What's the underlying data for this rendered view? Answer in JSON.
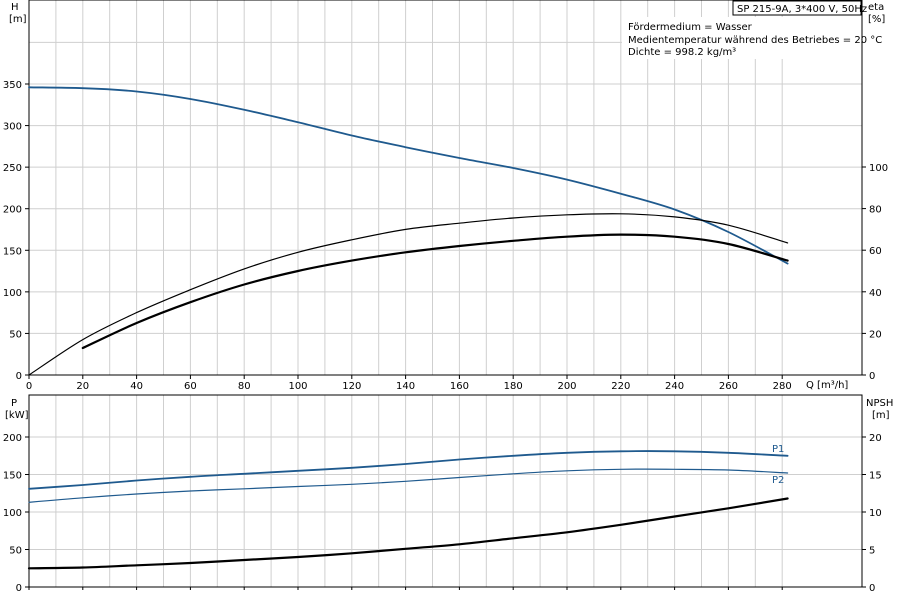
{
  "title": "SP 215-9A, 3*400 V, 50Hz",
  "info_lines": [
    "Fördermedium = Wasser",
    "Medientemperatur während des Betriebes = 20 °C",
    "Dichte = 998.2 kg/m³"
  ],
  "chart_data": [
    {
      "type": "line",
      "name": "pump-performance",
      "x_axis": {
        "label": "Q [m³/h]",
        "range": [
          0,
          290
        ],
        "ticks": [
          0,
          20,
          40,
          60,
          80,
          100,
          120,
          140,
          160,
          180,
          200,
          220,
          240,
          260,
          280
        ]
      },
      "y_axis_left": {
        "label_top": "H",
        "label_unit": "[m]",
        "range": [
          0,
          350
        ],
        "ticks": [
          0,
          50,
          100,
          150,
          200,
          250,
          300,
          350
        ]
      },
      "y_axis_right": {
        "label_top": "eta",
        "label_unit": "[%]",
        "range": [
          0,
          100
        ],
        "ticks": [
          0,
          20,
          40,
          60,
          80,
          100
        ]
      },
      "grid": true,
      "series": [
        {
          "name": "H",
          "axis": "left",
          "color": "#1f5a8e",
          "width": 1.8,
          "x": [
            0,
            20,
            40,
            60,
            80,
            100,
            120,
            140,
            160,
            180,
            200,
            220,
            240,
            260,
            282
          ],
          "y": [
            346,
            345,
            341,
            332,
            319,
            304,
            288,
            274,
            261,
            249,
            235,
            218,
            199,
            172,
            134
          ]
        },
        {
          "axis": "right",
          "color": "#000000",
          "width": 1.2,
          "x": [
            0,
            20,
            40,
            60,
            80,
            100,
            120,
            140,
            160,
            180,
            200,
            220,
            240,
            260,
            282
          ],
          "y": [
            0,
            17,
            30,
            41,
            51,
            59,
            65,
            70,
            73,
            75.5,
            77,
            77.5,
            76,
            72,
            63.5
          ]
        },
        {
          "axis": "right",
          "color": "#000000",
          "width": 2.2,
          "x": [
            20,
            40,
            60,
            80,
            100,
            120,
            140,
            160,
            180,
            200,
            220,
            240,
            260,
            282
          ],
          "y": [
            13,
            25,
            35,
            43.5,
            50,
            55,
            59,
            62,
            64.5,
            66.5,
            67.5,
            66.5,
            63,
            55
          ]
        }
      ]
    },
    {
      "type": "line",
      "name": "power-npsh",
      "x_axis": {
        "range": [
          0,
          290
        ],
        "ticks": [
          0,
          20,
          40,
          60,
          80,
          100,
          120,
          140,
          160,
          180,
          200,
          220,
          240,
          260,
          280
        ]
      },
      "y_axis_left": {
        "label_top": "P",
        "label_unit": "[kW]",
        "range": [
          0,
          200
        ],
        "ticks": [
          0,
          50,
          100,
          150,
          200
        ]
      },
      "y_axis_right": {
        "label_top": "NPSH",
        "label_unit": "[m]",
        "range": [
          0,
          20
        ],
        "ticks": [
          0,
          5,
          10,
          15,
          20
        ]
      },
      "grid": true,
      "series": [
        {
          "name": "P1",
          "axis": "left",
          "color": "#1f5a8e",
          "width": 1.8,
          "x": [
            0,
            20,
            40,
            60,
            80,
            100,
            120,
            140,
            160,
            180,
            200,
            220,
            240,
            260,
            282
          ],
          "y": [
            131,
            136,
            142,
            147,
            151,
            155,
            159,
            164,
            170,
            175,
            179,
            181,
            181,
            179,
            175
          ]
        },
        {
          "name": "P2",
          "axis": "left",
          "color": "#1f5a8e",
          "width": 1.2,
          "x": [
            0,
            20,
            40,
            60,
            80,
            100,
            120,
            140,
            160,
            180,
            200,
            220,
            240,
            260,
            282
          ],
          "y": [
            113,
            119,
            124,
            128,
            131,
            134,
            137,
            141,
            146,
            151,
            155,
            157,
            157,
            156,
            152
          ]
        },
        {
          "axis": "right",
          "color": "#000000",
          "width": 2.2,
          "x": [
            0,
            20,
            40,
            60,
            80,
            100,
            120,
            140,
            160,
            180,
            200,
            220,
            240,
            260,
            282
          ],
          "y": [
            2.5,
            2.6,
            2.9,
            3.2,
            3.6,
            4.0,
            4.5,
            5.1,
            5.7,
            6.5,
            7.3,
            8.3,
            9.4,
            10.5,
            11.8
          ]
        }
      ]
    }
  ]
}
